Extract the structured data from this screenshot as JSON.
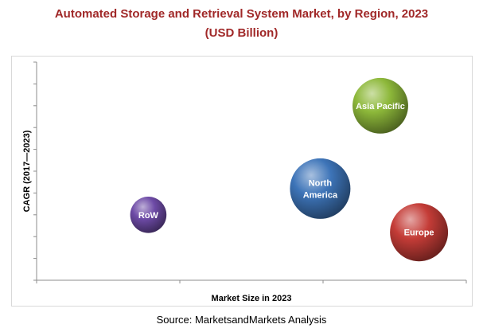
{
  "title_lines": [
    "Automated Storage and Retrieval System Market, by Region, 2023",
    "(USD Billion)"
  ],
  "source": "Source: MarketsandMarkets Analysis",
  "chart_data": {
    "type": "scatter",
    "subtype": "bubble",
    "title": "Automated Storage and Retrieval System Market, by Region, 2023 (USD Billion)",
    "xlabel": "Market Size in 2023",
    "ylabel": "CAGR (2017—2023)",
    "grid": false,
    "tick_labels_shown": false,
    "legend": "none",
    "series": [
      {
        "name": "Asia Pacific",
        "label_lines": [
          "Asia Pacific"
        ],
        "x": 0.8,
        "y": 0.8,
        "size": 0.92,
        "color": "#8db83a"
      },
      {
        "name": "North America",
        "label_lines": [
          "North",
          "America"
        ],
        "x": 0.66,
        "y": 0.42,
        "size": 1.0,
        "color": "#3d74b8"
      },
      {
        "name": "Europe",
        "label_lines": [
          "Europe"
        ],
        "x": 0.89,
        "y": 0.22,
        "size": 0.96,
        "color": "#c43c37"
      },
      {
        "name": "RoW",
        "label_lines": [
          "RoW"
        ],
        "x": 0.26,
        "y": 0.3,
        "size": 0.6,
        "color": "#6d4aa6"
      }
    ]
  }
}
